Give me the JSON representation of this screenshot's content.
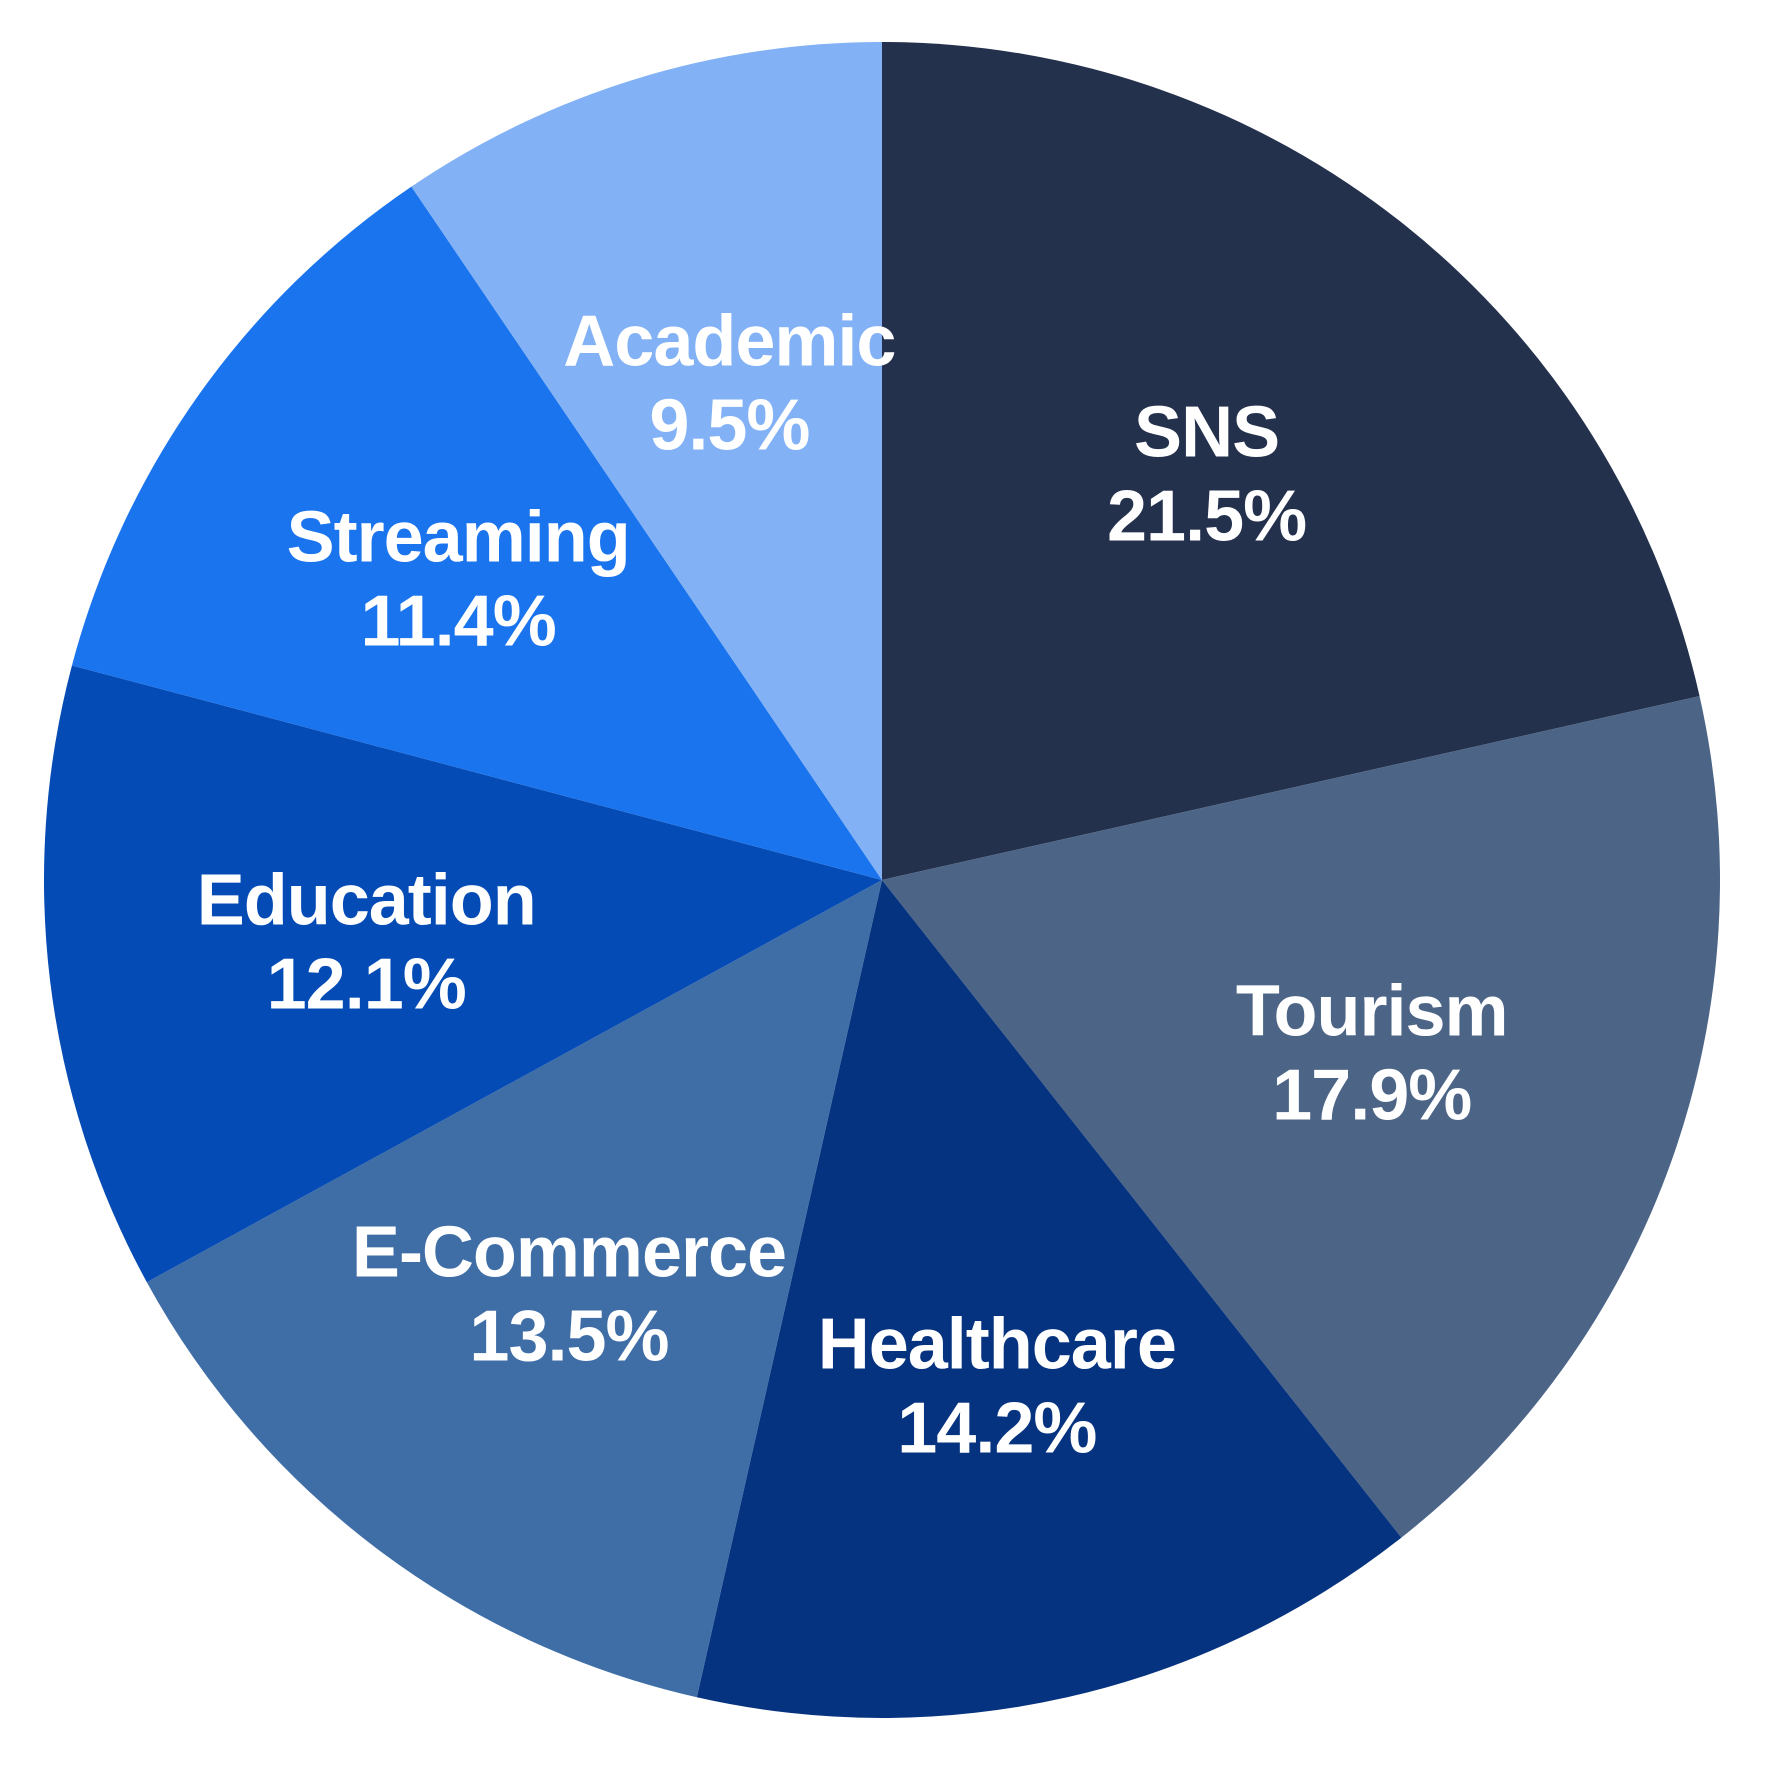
{
  "chart_data": {
    "type": "pie",
    "title": "",
    "start_angle_deg": 0,
    "direction": "clockwise",
    "slices": [
      {
        "label": "SNS",
        "value": 21.5,
        "value_label": "21.5%",
        "color": "#24314d"
      },
      {
        "label": "Tourism",
        "value": 17.9,
        "value_label": "17.9%",
        "color": "#4c6587"
      },
      {
        "label": "Healthcare",
        "value": 14.2,
        "value_label": "14.2%",
        "color": "#06337f"
      },
      {
        "label": "E-Commerce",
        "value": 13.5,
        "value_label": "13.5%",
        "color": "#3f6ea7"
      },
      {
        "label": "Education",
        "value": 12.1,
        "value_label": "12.1%",
        "color": "#054bb5"
      },
      {
        "label": "Streaming",
        "value": 11.4,
        "value_label": "11.4%",
        "color": "#1a74ee"
      },
      {
        "label": "Academic",
        "value": 9.5,
        "value_label": "9.5%",
        "color": "#82b2f5"
      }
    ]
  }
}
